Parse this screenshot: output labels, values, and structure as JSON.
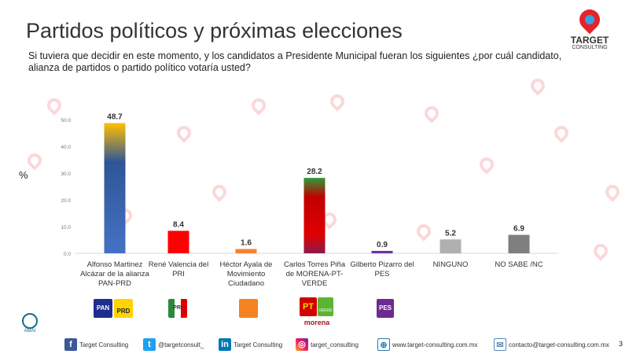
{
  "header": {
    "title": "Partidos políticos y próximas elecciones",
    "question": "Si tuviera que decidir en este momento, y los candidatos a Presidente Municipal fueran los siguientes ¿por cuál candidato, alianza de partidos o partido político votaría usted?",
    "logo_line1": "TARGET",
    "logo_line2": "CONSULTING"
  },
  "chart_data": {
    "type": "bar",
    "ylabel": "%",
    "ylim": [
      0,
      50
    ],
    "yticks": [
      "0.0",
      "10.0",
      "20.0",
      "30.0",
      "40.0",
      "50.0"
    ],
    "categories": [
      "Alfonso Martinez Alcázar de la alianza PAN-PRD",
      "René Valencia del PRI",
      "Héctor Ayala de Movimiento Ciudadano",
      "Carlos Torres Piña de MORENA-PT-VERDE",
      "Gilberto Pizarro del PES",
      "NINGUNO",
      "NO SABE /NC"
    ],
    "values": [
      48.7,
      8.4,
      1.6,
      28.2,
      0.9,
      5.2,
      6.9
    ],
    "labels": [
      "48.7",
      "8.4",
      "1.6",
      "28.2",
      "0.9",
      "5.2",
      "6.9"
    ],
    "colors": [
      "#4472c4",
      "#ff0000",
      "#f58233",
      "#c00000",
      "#7030a0",
      "#b0b0b0",
      "#7f7f7f"
    ],
    "grid": false
  },
  "parties": [
    {
      "name": "PAN",
      "color": "#1f2d8f"
    },
    {
      "name": "PRD",
      "color": "#ffd400"
    },
    {
      "name": "PRI",
      "color": "#d0d0d0"
    },
    {
      "name": "MC",
      "color": "#f58220"
    },
    {
      "name": "PT",
      "color": "#d00000"
    },
    {
      "name": "VERDE",
      "color": "#5cb531"
    },
    {
      "name": "morena",
      "color": "#a01a1a"
    },
    {
      "name": "PES",
      "color": "#6b2c91"
    }
  ],
  "amai": {
    "name": "AMAI"
  },
  "footer": {
    "facebook": "Target Consulting",
    "twitter": "@targetconsult_",
    "linkedin": "Target Consulting",
    "instagram": "target_consulting",
    "web": "www.target-consulting.com.mx",
    "email": "contacto@target-consulting.com.mx",
    "page": "3"
  }
}
